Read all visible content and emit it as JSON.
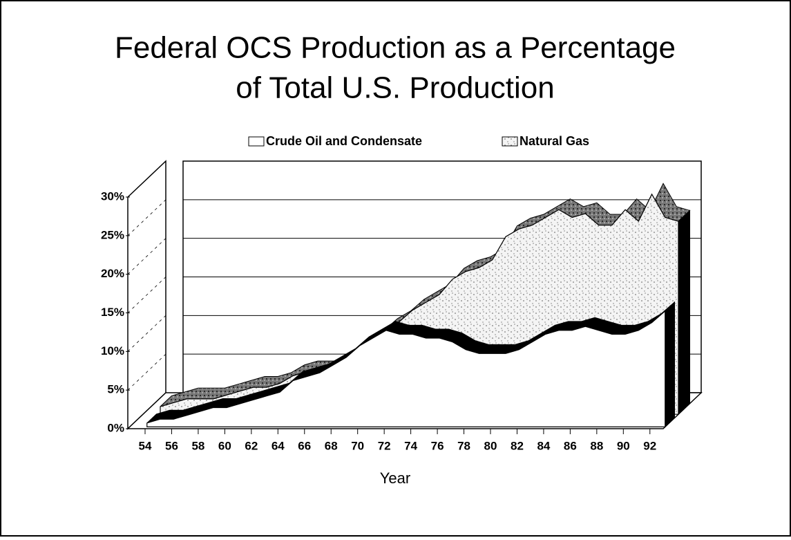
{
  "chart_data": {
    "type": "area3d",
    "title": [
      "Federal OCS Production as a Percentage",
      "of Total U.S. Production"
    ],
    "xlabel": "Year",
    "x": [
      54,
      55,
      56,
      57,
      58,
      59,
      60,
      61,
      62,
      63,
      64,
      65,
      66,
      67,
      68,
      69,
      70,
      71,
      72,
      73,
      74,
      75,
      76,
      77,
      78,
      79,
      80,
      81,
      82,
      83,
      84,
      85,
      86,
      87,
      88,
      89,
      90,
      91,
      92,
      93
    ],
    "xlim": [
      54,
      93
    ],
    "xticks": [
      54,
      56,
      58,
      60,
      62,
      64,
      66,
      68,
      70,
      72,
      74,
      76,
      78,
      80,
      82,
      84,
      86,
      88,
      90,
      92
    ],
    "ylim": [
      0,
      30
    ],
    "yticks": [
      {
        "value": 0,
        "label": "0%"
      },
      {
        "value": 5,
        "label": "5%"
      },
      {
        "value": 10,
        "label": "10%"
      },
      {
        "value": 15,
        "label": "15%"
      },
      {
        "value": 20,
        "label": "20%"
      },
      {
        "value": 25,
        "label": "25%"
      },
      {
        "value": 30,
        "label": "30%"
      }
    ],
    "grid": true,
    "legend": "top",
    "series": [
      {
        "name": "Crude Oil and Condensate",
        "color": "#ffffff",
        "values": [
          0.5,
          1,
          1,
          1.5,
          2,
          2.5,
          2.5,
          3,
          3.5,
          4,
          4.5,
          6,
          6.5,
          7,
          8,
          9,
          10.5,
          11.5,
          12.5,
          12,
          12,
          11.5,
          11.5,
          11,
          10,
          9.5,
          9.5,
          9.5,
          10,
          11,
          12,
          12.5,
          12.5,
          13,
          12.5,
          12,
          12,
          12.5,
          13.5,
          15
        ]
      },
      {
        "name": "Natural Gas",
        "color": "#d8d8d8",
        "values": [
          1,
          1.5,
          2,
          2,
          2,
          2.5,
          3,
          3.5,
          3.5,
          4,
          5,
          5.5,
          5.5,
          5.5,
          7,
          8,
          9.5,
          11,
          12,
          13.5,
          14.5,
          15.5,
          17.5,
          18.5,
          19,
          20,
          23,
          24,
          24.5,
          25.5,
          26.5,
          25.5,
          26,
          24.5,
          24.5,
          26.5,
          25,
          28.5,
          25.5,
          25
        ]
      }
    ]
  }
}
